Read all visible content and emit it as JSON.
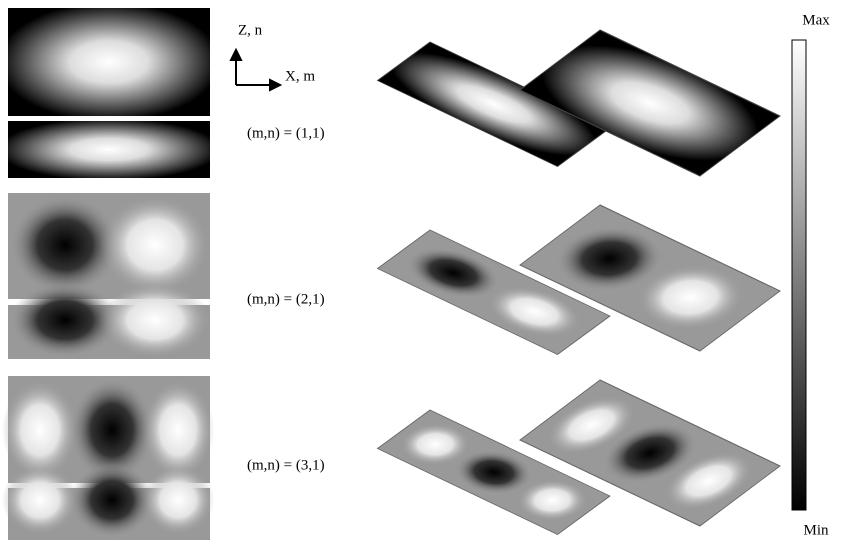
{
  "axes": {
    "z_label": "Z, n",
    "x_label": "X, m"
  },
  "modes": [
    {
      "label": "(m,n) = (1,1)"
    },
    {
      "label": "(m,n) = (2,1)"
    },
    {
      "label": "(m,n) = (3,1)"
    }
  ],
  "colorbar": {
    "max_label": "Max",
    "min_label": "Min"
  }
}
